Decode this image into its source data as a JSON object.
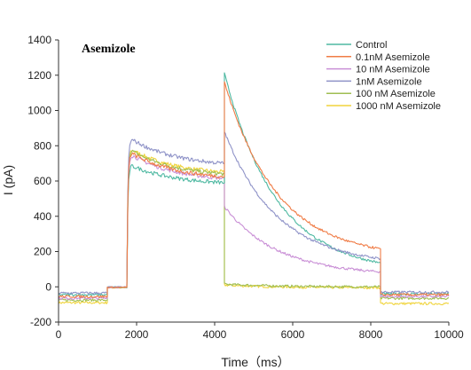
{
  "chart_data": {
    "type": "line",
    "title": "Asemizole",
    "xlabel": "Time（ms）",
    "ylabel": "I (pA)",
    "xlim": [
      0,
      10000
    ],
    "ylim": [
      -200,
      1400
    ],
    "x_ticks": [
      "0",
      "2000",
      "4000",
      "6000",
      "8000",
      "10000"
    ],
    "y_ticks": [
      "-200",
      "0",
      "200",
      "400",
      "600",
      "800",
      "1000",
      "1200",
      "1400"
    ],
    "grid": false,
    "legend_position": "top-right",
    "protocol_ms": {
      "prepulse_start": 1250,
      "step_start": 1750,
      "tail_start": 4250,
      "tail_end": 8250
    },
    "series": [
      {
        "name": "Control",
        "color": "#4fb9a2",
        "holding": -45,
        "prepulse": -2,
        "step_peak": 700,
        "step_end": 590,
        "tail_peak": 1210,
        "tail_end": 135,
        "after": -40
      },
      {
        "name": "0.1nM Asemizole",
        "color": "#f07c46",
        "holding": -55,
        "prepulse": -3,
        "step_peak": 775,
        "step_end": 625,
        "tail_peak": 1160,
        "tail_end": 215,
        "after": -45
      },
      {
        "name": "10 nM Asemizole",
        "color": "#c98fd6",
        "holding": -65,
        "prepulse": -4,
        "step_peak": 765,
        "step_end": 615,
        "tail_peak": 455,
        "tail_end": 85,
        "after": -55
      },
      {
        "name": "1nM Asemizole",
        "color": "#8f93c8",
        "holding": -35,
        "prepulse": -1,
        "step_peak": 855,
        "step_end": 700,
        "tail_peak": 880,
        "tail_end": 160,
        "after": -30
      },
      {
        "name": "100 nM Asemizole",
        "color": "#9fbe52",
        "holding": -75,
        "prepulse": -5,
        "step_peak": 790,
        "step_end": 640,
        "tail_peak": 15,
        "tail_end": 0,
        "after": -65
      },
      {
        "name": "1000 nM Asemizole",
        "color": "#f0d43c",
        "holding": -90,
        "prepulse": -6,
        "step_peak": 795,
        "step_end": 650,
        "tail_peak": 10,
        "tail_end": -5,
        "after": -95
      }
    ]
  }
}
